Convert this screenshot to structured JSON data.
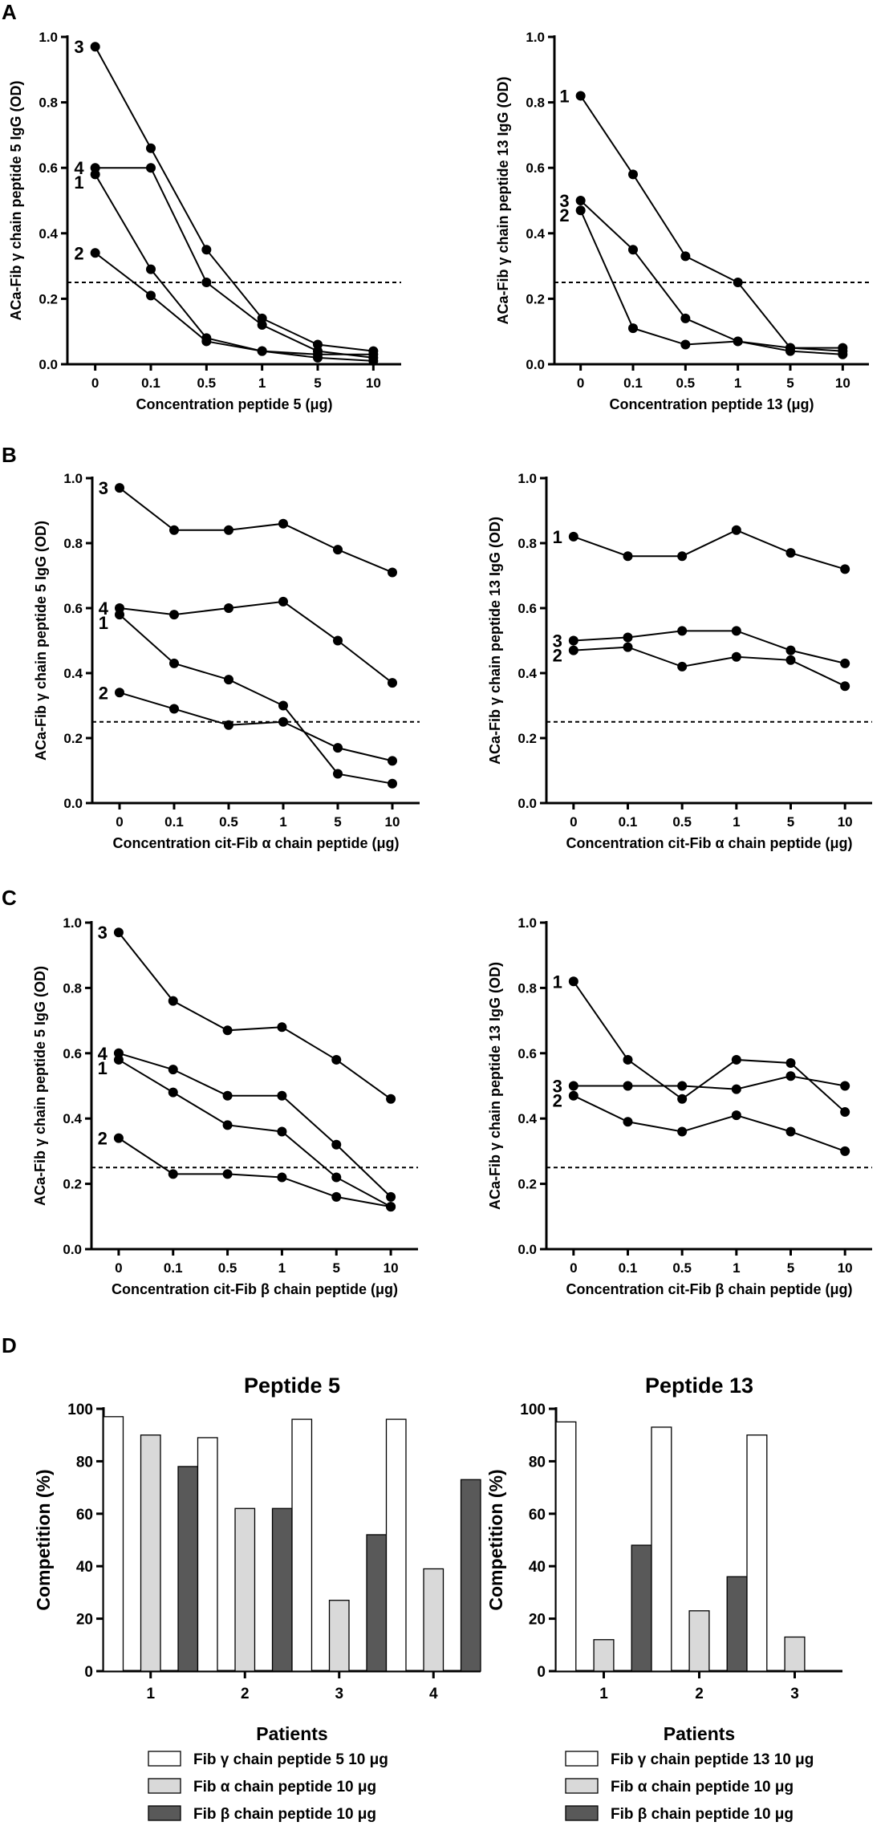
{
  "figure": {
    "panel_labels": [
      "A",
      "B",
      "C",
      "D"
    ]
  },
  "colors": {
    "line": "#000000",
    "white_bar": "#ffffff",
    "light_bar": "#d9d9d9",
    "dark_bar": "#595959"
  },
  "chart_data": [
    {
      "id": "A-left",
      "panel": "A",
      "type": "line",
      "categories": [
        "0",
        "0.1",
        "0.5",
        "1",
        "5",
        "10"
      ],
      "xlabel": "Concentration peptide 5 (μg)",
      "ylabel": "ACa-Fib γ chain peptide 5 IgG (OD)",
      "ylim": [
        0,
        1.0
      ],
      "yticks": [
        "0.0",
        "0.2",
        "0.4",
        "0.6",
        "0.8",
        "1.0"
      ],
      "threshold": 0.25,
      "series": [
        {
          "name": "3",
          "values": [
            0.97,
            0.66,
            0.35,
            0.14,
            0.06,
            0.04
          ]
        },
        {
          "name": "4",
          "values": [
            0.6,
            0.6,
            0.25,
            0.12,
            0.04,
            0.02
          ]
        },
        {
          "name": "1",
          "values": [
            0.58,
            0.29,
            0.08,
            0.04,
            0.03,
            0.03
          ]
        },
        {
          "name": "2",
          "values": [
            0.34,
            0.21,
            0.07,
            0.04,
            0.02,
            0.01
          ]
        }
      ]
    },
    {
      "id": "A-right",
      "panel": "A",
      "type": "line",
      "categories": [
        "0",
        "0.1",
        "0.5",
        "1",
        "5",
        "10"
      ],
      "xlabel": "Concentration peptide 13 (μg)",
      "ylabel": "ACa-Fib γ chain peptide 13 IgG (OD)",
      "ylim": [
        0,
        1.0
      ],
      "yticks": [
        "0.0",
        "0.2",
        "0.4",
        "0.6",
        "0.8",
        "1.0"
      ],
      "threshold": 0.25,
      "series": [
        {
          "name": "1",
          "values": [
            0.82,
            0.58,
            0.33,
            0.25,
            0.05,
            0.05
          ]
        },
        {
          "name": "3",
          "values": [
            0.5,
            0.35,
            0.14,
            0.07,
            0.05,
            0.04
          ]
        },
        {
          "name": "2",
          "values": [
            0.47,
            0.11,
            0.06,
            0.07,
            0.04,
            0.03
          ]
        }
      ]
    },
    {
      "id": "B-left",
      "panel": "B",
      "type": "line",
      "categories": [
        "0",
        "0.1",
        "0.5",
        "1",
        "5",
        "10"
      ],
      "xlabel": "Concentration cit-Fib α chain peptide (μg)",
      "ylabel": "ACa-Fib γ chain peptide 5 IgG (OD)",
      "ylim": [
        0,
        1.0
      ],
      "yticks": [
        "0.0",
        "0.2",
        "0.4",
        "0.6",
        "0.8",
        "1.0"
      ],
      "threshold": 0.25,
      "series": [
        {
          "name": "3",
          "values": [
            0.97,
            0.84,
            0.84,
            0.86,
            0.78,
            0.71
          ]
        },
        {
          "name": "4",
          "values": [
            0.6,
            0.58,
            0.6,
            0.62,
            0.5,
            0.37
          ]
        },
        {
          "name": "1",
          "values": [
            0.58,
            0.43,
            0.38,
            0.3,
            0.09,
            0.06
          ]
        },
        {
          "name": "2",
          "values": [
            0.34,
            0.29,
            0.24,
            0.25,
            0.17,
            0.13
          ]
        }
      ]
    },
    {
      "id": "B-right",
      "panel": "B",
      "type": "line",
      "categories": [
        "0",
        "0.1",
        "0.5",
        "1",
        "5",
        "10"
      ],
      "xlabel": "Concentration cit-Fib α chain peptide (μg)",
      "ylabel": "ACa-Fib γ chain peptide 13 IgG (OD)",
      "ylim": [
        0,
        1.0
      ],
      "yticks": [
        "0.0",
        "0.2",
        "0.4",
        "0.6",
        "0.8",
        "1.0"
      ],
      "threshold": 0.25,
      "series": [
        {
          "name": "1",
          "values": [
            0.82,
            0.76,
            0.76,
            0.84,
            0.77,
            0.72
          ]
        },
        {
          "name": "3",
          "values": [
            0.5,
            0.51,
            0.53,
            0.53,
            0.47,
            0.43
          ]
        },
        {
          "name": "2",
          "values": [
            0.47,
            0.48,
            0.42,
            0.45,
            0.44,
            0.36
          ]
        }
      ]
    },
    {
      "id": "C-left",
      "panel": "C",
      "type": "line",
      "categories": [
        "0",
        "0.1",
        "0.5",
        "1",
        "5",
        "10"
      ],
      "xlabel": "Concentration cit-Fib β chain peptide (μg)",
      "ylabel": "ACa-Fib γ chain peptide 5 IgG (OD)",
      "ylim": [
        0,
        1.0
      ],
      "yticks": [
        "0.0",
        "0.2",
        "0.4",
        "0.6",
        "0.8",
        "1.0"
      ],
      "threshold": 0.25,
      "series": [
        {
          "name": "3",
          "values": [
            0.97,
            0.76,
            0.67,
            0.68,
            0.58,
            0.46
          ]
        },
        {
          "name": "4",
          "values": [
            0.6,
            0.55,
            0.47,
            0.47,
            0.32,
            0.16
          ]
        },
        {
          "name": "1",
          "values": [
            0.58,
            0.48,
            0.38,
            0.36,
            0.22,
            0.13
          ]
        },
        {
          "name": "2",
          "values": [
            0.34,
            0.23,
            0.23,
            0.22,
            0.16,
            0.13
          ]
        }
      ]
    },
    {
      "id": "C-right",
      "panel": "C",
      "type": "line",
      "categories": [
        "0",
        "0.1",
        "0.5",
        "1",
        "5",
        "10"
      ],
      "xlabel": "Concentration cit-Fib β chain peptide (μg)",
      "ylabel": "ACa-Fib γ chain peptide 13 IgG (OD)",
      "ylim": [
        0,
        1.0
      ],
      "yticks": [
        "0.0",
        "0.2",
        "0.4",
        "0.6",
        "0.8",
        "1.0"
      ],
      "threshold": 0.25,
      "series": [
        {
          "name": "1",
          "values": [
            0.82,
            0.58,
            0.46,
            0.58,
            0.57,
            0.42
          ]
        },
        {
          "name": "3",
          "values": [
            0.5,
            0.5,
            0.5,
            0.49,
            0.53,
            0.5
          ]
        },
        {
          "name": "2",
          "values": [
            0.47,
            0.39,
            0.36,
            0.41,
            0.36,
            0.3
          ]
        }
      ]
    },
    {
      "id": "D-left",
      "panel": "D",
      "type": "bar",
      "title": "Peptide 5",
      "categories": [
        "1",
        "2",
        "3",
        "4"
      ],
      "xlabel": "Patients",
      "ylabel": "Competition (%)",
      "ylim": [
        0,
        100
      ],
      "yticks": [
        "0",
        "20",
        "40",
        "60",
        "80",
        "100"
      ],
      "series": [
        {
          "name": "Fib γ chain peptide 5 10 μg",
          "values": [
            97,
            89,
            96,
            96
          ]
        },
        {
          "name": "Fib α chain peptide 10 μg",
          "values": [
            90,
            62,
            27,
            39
          ]
        },
        {
          "name": "Fib β chain peptide 10 μg",
          "values": [
            78,
            62,
            52,
            73
          ]
        }
      ]
    },
    {
      "id": "D-right",
      "panel": "D",
      "type": "bar",
      "title": "Peptide 13",
      "categories": [
        "1",
        "2",
        "3"
      ],
      "xlabel": "Patients",
      "ylabel": "Competition (%)",
      "ylim": [
        0,
        100
      ],
      "yticks": [
        "0",
        "20",
        "40",
        "60",
        "80",
        "100"
      ],
      "series": [
        {
          "name": "Fib γ chain peptide 13 10 μg",
          "values": [
            95,
            93,
            90
          ]
        },
        {
          "name": "Fib α chain peptide 10 μg",
          "values": [
            12,
            23,
            13
          ]
        },
        {
          "name": "Fib β chain peptide 10 μg",
          "values": [
            48,
            36,
            0
          ]
        }
      ]
    }
  ]
}
